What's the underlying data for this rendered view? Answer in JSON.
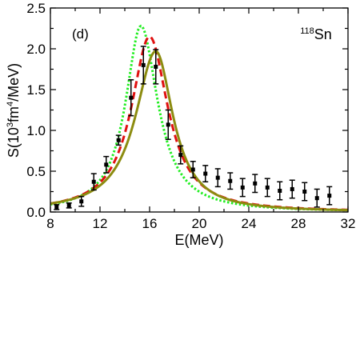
{
  "chart_data": {
    "type": "line",
    "panel_label": "(d)",
    "nucleus": {
      "mass": "118",
      "symbol": "Sn"
    },
    "xlabel": "E(MeV)",
    "ylabel": {
      "prefix": "S(10",
      "sup1": "3",
      "mid": "fm",
      "sup2": "4",
      "suffix": "/MeV)"
    },
    "xlim": [
      8,
      32
    ],
    "ylim": [
      0,
      2.5
    ],
    "x_ticks": [
      8,
      12,
      16,
      20,
      24,
      28,
      32
    ],
    "y_ticks": [
      0.0,
      0.5,
      1.0,
      1.5,
      2.0,
      2.5
    ],
    "x_tick_labels": [
      "8",
      "12",
      "16",
      "20",
      "24",
      "28",
      "32"
    ],
    "y_tick_labels": [
      "0.0",
      "0.5",
      "1.0",
      "1.5",
      "2.0",
      "2.5"
    ],
    "series": [
      {
        "style": "dotted",
        "color": "#22ee22",
        "peak": {
          "x": 15.3,
          "y": 2.28
        },
        "gamma_lo": 3.0,
        "gamma_hi": 3.3
      },
      {
        "style": "dashed",
        "color": "#e01010",
        "peak": {
          "x": 16.0,
          "y": 2.15
        },
        "gamma_lo": 3.6,
        "gamma_hi": 3.6
      },
      {
        "style": "solid",
        "color": "#8c8c10",
        "peak": {
          "x": 16.5,
          "y": 1.97
        },
        "gamma_lo": 4.0,
        "gamma_hi": 3.4
      }
    ],
    "experimental": {
      "marker": "square",
      "color": "#000000",
      "points": [
        {
          "x": 8.5,
          "y": 0.06,
          "err": 0.03
        },
        {
          "x": 9.5,
          "y": 0.08,
          "err": 0.03
        },
        {
          "x": 10.5,
          "y": 0.13,
          "err": 0.06
        },
        {
          "x": 11.5,
          "y": 0.37,
          "err": 0.1
        },
        {
          "x": 12.5,
          "y": 0.58,
          "err": 0.1
        },
        {
          "x": 13.5,
          "y": 0.88,
          "err": 0.06
        },
        {
          "x": 14.5,
          "y": 1.4,
          "err": 0.22
        },
        {
          "x": 15.5,
          "y": 1.8,
          "err": 0.23
        },
        {
          "x": 16.5,
          "y": 1.78,
          "err": 0.21
        },
        {
          "x": 17.5,
          "y": 1.07,
          "err": 0.18
        },
        {
          "x": 18.5,
          "y": 0.7,
          "err": 0.11
        },
        {
          "x": 19.5,
          "y": 0.52,
          "err": 0.1
        },
        {
          "x": 20.5,
          "y": 0.47,
          "err": 0.1
        },
        {
          "x": 21.5,
          "y": 0.42,
          "err": 0.11
        },
        {
          "x": 22.5,
          "y": 0.38,
          "err": 0.1
        },
        {
          "x": 23.5,
          "y": 0.3,
          "err": 0.11
        },
        {
          "x": 24.5,
          "y": 0.35,
          "err": 0.11
        },
        {
          "x": 25.5,
          "y": 0.3,
          "err": 0.11
        },
        {
          "x": 26.5,
          "y": 0.26,
          "err": 0.11
        },
        {
          "x": 27.5,
          "y": 0.28,
          "err": 0.11
        },
        {
          "x": 28.5,
          "y": 0.25,
          "err": 0.11
        },
        {
          "x": 29.5,
          "y": 0.17,
          "err": 0.11
        },
        {
          "x": 30.5,
          "y": 0.2,
          "err": 0.11
        }
      ]
    }
  }
}
